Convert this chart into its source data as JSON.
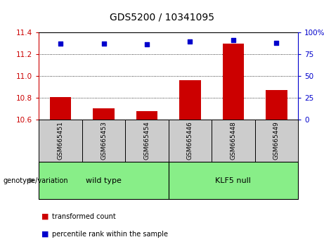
{
  "title": "GDS5200 / 10341095",
  "samples": [
    "GSM665451",
    "GSM665453",
    "GSM665454",
    "GSM665446",
    "GSM665448",
    "GSM665449"
  ],
  "bar_values": [
    10.803,
    10.7,
    10.678,
    10.96,
    11.295,
    10.87
  ],
  "bar_bottom": 10.6,
  "percentile_values": [
    87.0,
    87.0,
    86.0,
    89.5,
    91.0,
    88.0
  ],
  "bar_color": "#cc0000",
  "dot_color": "#0000cc",
  "ylim_left": [
    10.6,
    11.4
  ],
  "ylim_right": [
    0,
    100
  ],
  "yticks_left": [
    10.6,
    10.8,
    11.0,
    11.2,
    11.4
  ],
  "yticks_right": [
    0,
    25,
    50,
    75,
    100
  ],
  "ytick_labels_right": [
    "0",
    "25",
    "50",
    "75",
    "100%"
  ],
  "group1_label": "wild type",
  "group2_label": "KLF5 null",
  "group_bg_color": "#88ee88",
  "sample_bg_color": "#cccccc",
  "legend_bar_label": "transformed count",
  "legend_dot_label": "percentile rank within the sample",
  "genotype_label": "genotype/variation",
  "plot_bg_color": "#ffffff"
}
